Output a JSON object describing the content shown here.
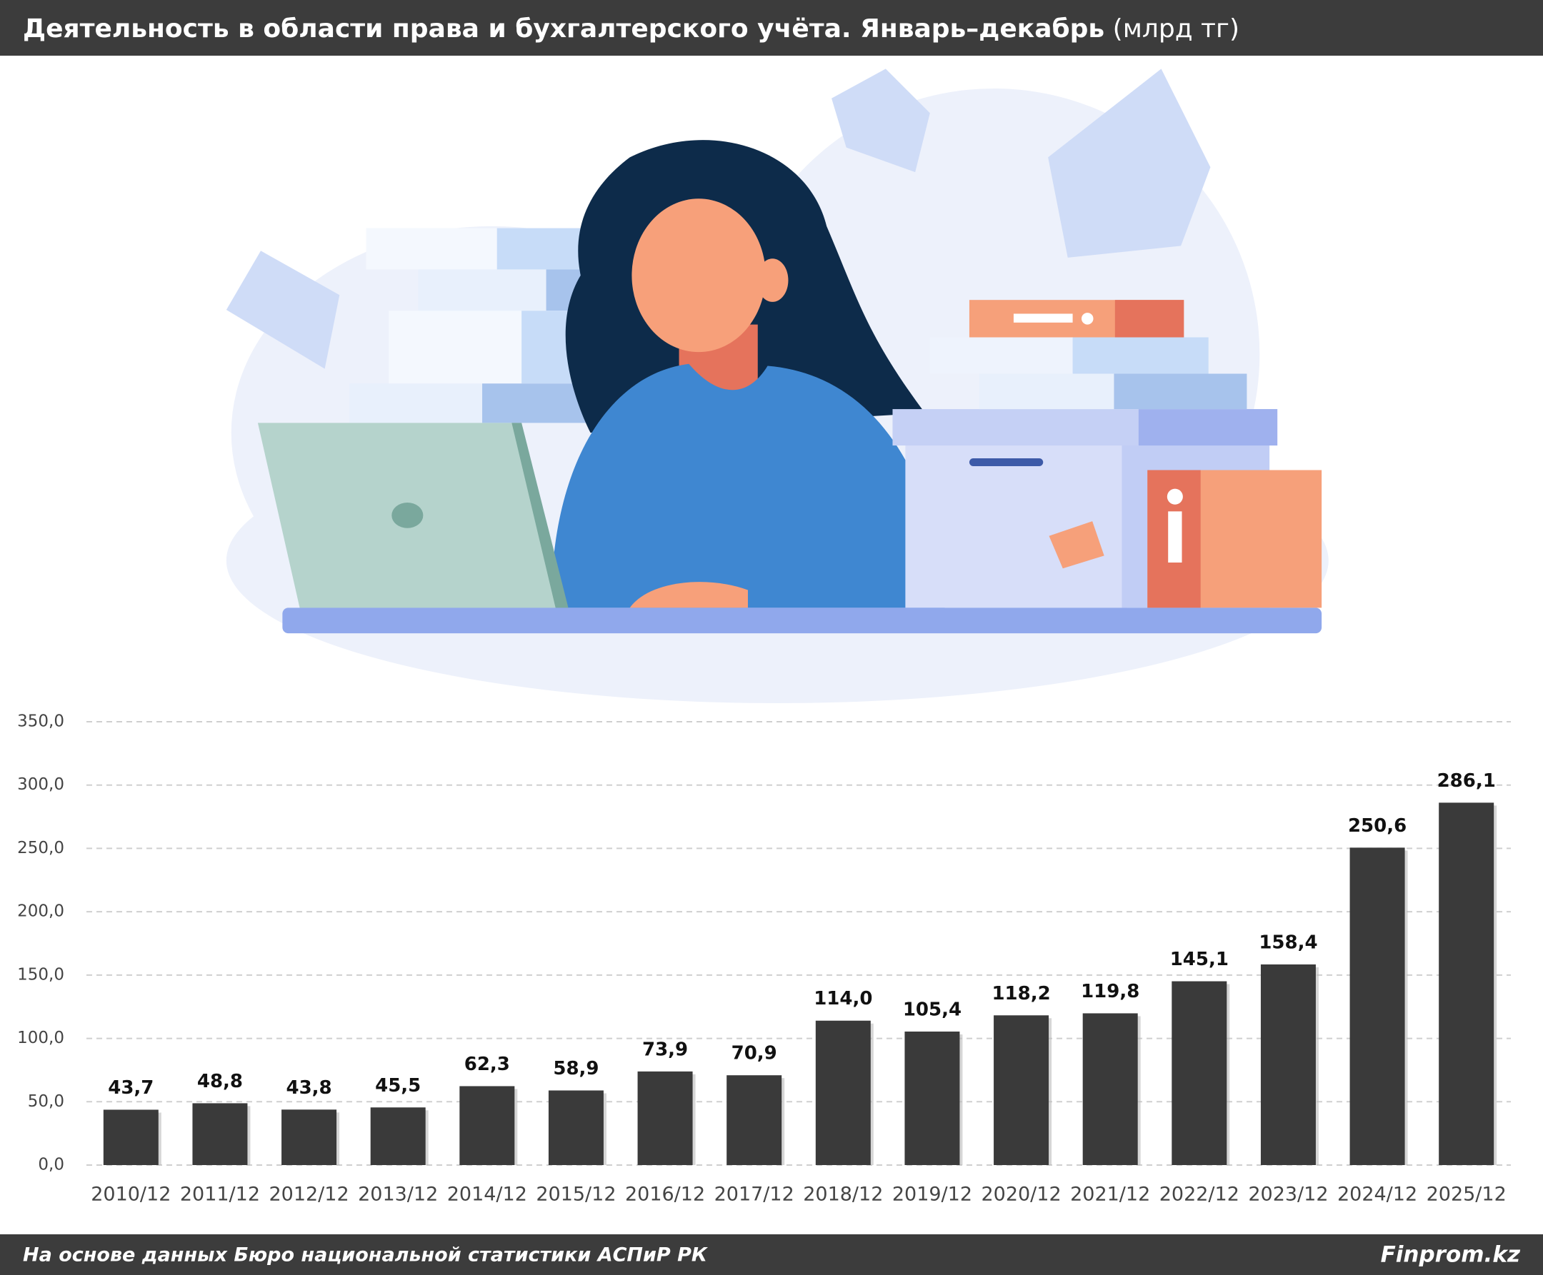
{
  "chart_data": {
    "type": "bar",
    "title": "Деятельность в области права и бухгалтерского учёта. Январь–декабрь",
    "title_unit": "(млрд тг)",
    "source": "На основе данных Бюро национальной статистики АСПиР РК",
    "brand": "Finprom.kz",
    "categories": [
      "2010/12",
      "2011/12",
      "2012/12",
      "2013/12",
      "2014/12",
      "2015/12",
      "2016/12",
      "2017/12",
      "2018/12",
      "2019/12",
      "2020/12",
      "2021/12",
      "2022/12",
      "2023/12",
      "2024/12",
      "2025/12"
    ],
    "values": [
      43.7,
      48.8,
      43.8,
      45.5,
      62.3,
      58.9,
      73.9,
      70.9,
      114.0,
      105.4,
      118.2,
      119.8,
      145.1,
      158.4,
      250.6,
      286.1
    ],
    "value_labels": [
      "43,7",
      "48,8",
      "43,8",
      "45,5",
      "62,3",
      "58,9",
      "73,9",
      "70,9",
      "114,0",
      "105,4",
      "118,2",
      "119,8",
      "145,1",
      "158,4",
      "250,6",
      "286,1"
    ],
    "color": "#3a3a3a",
    "ylim": [
      0,
      350
    ],
    "yticks": [
      {
        "value": 0,
        "label": "0,0"
      },
      {
        "value": 50,
        "label": "50,0"
      },
      {
        "value": 100,
        "label": "100,0"
      },
      {
        "value": 150,
        "label": "150,0"
      },
      {
        "value": 200,
        "label": "200,0"
      },
      {
        "value": 250,
        "label": "250,0"
      },
      {
        "value": 300,
        "label": "300,0"
      },
      {
        "value": 350,
        "label": "350,0"
      }
    ],
    "grid": true
  }
}
